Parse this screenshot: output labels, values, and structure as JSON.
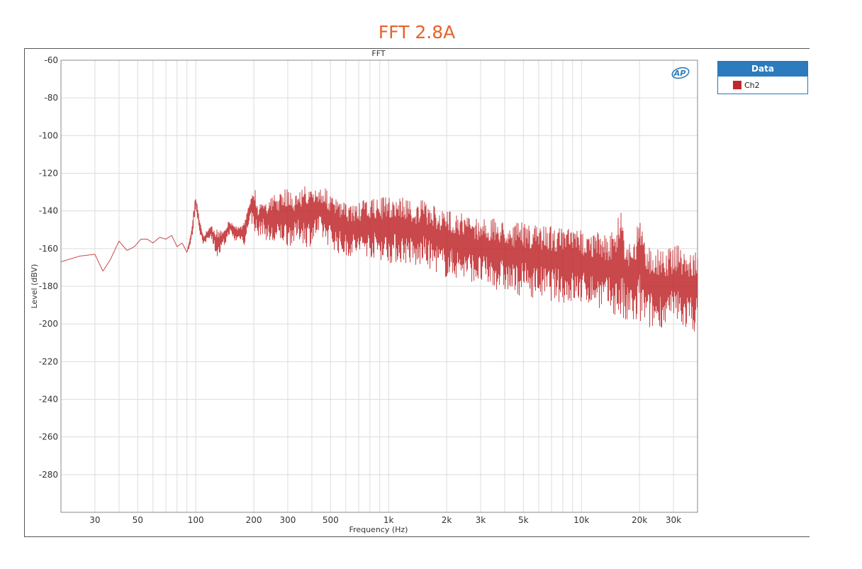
{
  "title": "FFT 2.8A",
  "chart_data": {
    "type": "line",
    "title": "FFT",
    "xlabel": "Frequency (Hz)",
    "ylabel": "Level (dBV)",
    "xscale": "log",
    "xlim": [
      20,
      40000
    ],
    "ylim": [
      -300,
      -60
    ],
    "grid": true,
    "legend_position": "top-right, outside plot",
    "legend_title": "Data",
    "logo": "AP",
    "x_ticks": [
      {
        "v": 30,
        "label": "30"
      },
      {
        "v": 50,
        "label": "50"
      },
      {
        "v": 100,
        "label": "100"
      },
      {
        "v": 200,
        "label": "200"
      },
      {
        "v": 300,
        "label": "300"
      },
      {
        "v": 500,
        "label": "500"
      },
      {
        "v": 1000,
        "label": "1k"
      },
      {
        "v": 2000,
        "label": "2k"
      },
      {
        "v": 3000,
        "label": "3k"
      },
      {
        "v": 5000,
        "label": "5k"
      },
      {
        "v": 10000,
        "label": "10k"
      },
      {
        "v": 20000,
        "label": "20k"
      },
      {
        "v": 30000,
        "label": "30k"
      }
    ],
    "y_ticks": [
      -60,
      -80,
      -100,
      -120,
      -140,
      -160,
      -180,
      -200,
      -220,
      -240,
      -260,
      -280
    ],
    "series": [
      {
        "name": "Ch2",
        "color": "#c0282b",
        "x": [
          20,
          25,
          30,
          33,
          36,
          40,
          44,
          48,
          52,
          56,
          60,
          65,
          70,
          75,
          80,
          85,
          90,
          95,
          100,
          105,
          110,
          115,
          120,
          130,
          140,
          150,
          160,
          170,
          180,
          190,
          200,
          210,
          220,
          240,
          260,
          280,
          300,
          320,
          350,
          380,
          400,
          420,
          450,
          480,
          500,
          550,
          600,
          650,
          700,
          750,
          800,
          900,
          1000,
          1100,
          1200,
          1300,
          1400,
          1500,
          1600,
          1800,
          2000,
          2200,
          2500,
          2800,
          3000,
          3300,
          3600,
          4000,
          4500,
          5000,
          5500,
          6000,
          6500,
          7000,
          8000,
          9000,
          10000,
          11000,
          12000,
          13000,
          14000,
          15000,
          16000,
          17000,
          18000,
          19000,
          20000,
          21000,
          22000,
          24000,
          26000,
          28000,
          30000,
          32000,
          34000,
          36000,
          38000,
          40000
        ],
        "envelope_top": [
          -167,
          -164,
          -163,
          -172,
          -166,
          -156,
          -161,
          -159,
          -155,
          -155,
          -157,
          -154,
          -155,
          -153,
          -159,
          -157,
          -162,
          -148,
          -131,
          -146,
          -152,
          -150,
          -148,
          -150,
          -148,
          -145,
          -147,
          -148,
          -145,
          -135,
          -123,
          -138,
          -132,
          -134,
          -130,
          -131,
          -126,
          -132,
          -128,
          -125,
          -130,
          -127,
          -126,
          -129,
          -132,
          -134,
          -136,
          -136,
          -136,
          -134,
          -134,
          -133,
          -132,
          -132,
          -132,
          -134,
          -136,
          -134,
          -136,
          -138,
          -140,
          -139,
          -142,
          -143,
          -143,
          -144,
          -144,
          -145,
          -146,
          -146,
          -148,
          -147,
          -147,
          -147,
          -149,
          -149,
          -150,
          -151,
          -151,
          -152,
          -152,
          -150,
          -134,
          -154,
          -155,
          -155,
          -134,
          -155,
          -157,
          -159,
          -160,
          -160,
          -159,
          -157,
          -161,
          -162,
          -162,
          -162
        ],
        "envelope_bottom": [
          -167,
          -164,
          -163,
          -172,
          -166,
          -156,
          -161,
          -159,
          -155,
          -155,
          -157,
          -154,
          -155,
          -153,
          -159,
          -157,
          -162,
          -158,
          -138,
          -152,
          -160,
          -155,
          -154,
          -166,
          -160,
          -152,
          -157,
          -155,
          -159,
          -145,
          -150,
          -155,
          -152,
          -158,
          -160,
          -157,
          -159,
          -158,
          -156,
          -160,
          -158,
          -155,
          -156,
          -158,
          -159,
          -163,
          -165,
          -164,
          -165,
          -164,
          -165,
          -166,
          -168,
          -168,
          -168,
          -169,
          -172,
          -168,
          -171,
          -173,
          -176,
          -176,
          -177,
          -178,
          -180,
          -181,
          -182,
          -183,
          -186,
          -184,
          -186,
          -186,
          -188,
          -188,
          -189,
          -190,
          -190,
          -190,
          -191,
          -193,
          -194,
          -196,
          -200,
          -203,
          -198,
          -203,
          -202,
          -200,
          -203,
          -204,
          -202,
          -202,
          -200,
          -200,
          -203,
          -203,
          -204,
          -204
        ]
      }
    ]
  }
}
